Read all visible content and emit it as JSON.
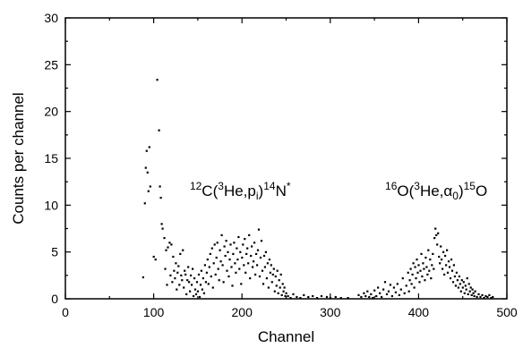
{
  "chart_data": {
    "type": "scatter",
    "xlabel": "Channel",
    "ylabel": "Counts per channel",
    "xlim": [
      0,
      500
    ],
    "ylim": [
      0,
      30
    ],
    "xticks": [
      0,
      100,
      200,
      300,
      400,
      500
    ],
    "yticks": [
      0,
      5,
      10,
      15,
      20,
      25,
      30
    ],
    "grid": false,
    "annotations": [
      {
        "label": "12C(3He,pi)14N*",
        "x": 198,
        "y": 11
      },
      {
        "label": "16O(3He,α0)15O",
        "x": 420,
        "y": 11
      }
    ],
    "series": [
      {
        "marker_color": "#000000",
        "points": [
          [
            88,
            2.3
          ],
          [
            90,
            10.2
          ],
          [
            91,
            14
          ],
          [
            92,
            15.8
          ],
          [
            93,
            13.5
          ],
          [
            94,
            11.5
          ],
          [
            95,
            16.2
          ],
          [
            96,
            12
          ],
          [
            100,
            4.5
          ],
          [
            102,
            4.2
          ],
          [
            104,
            23.4
          ],
          [
            106,
            18
          ],
          [
            107,
            12
          ],
          [
            108,
            10.8
          ],
          [
            109,
            8
          ],
          [
            110,
            7.5
          ],
          [
            112,
            6.5
          ],
          [
            113,
            3.2
          ],
          [
            114,
            5.2
          ],
          [
            115,
            1.5
          ],
          [
            116,
            5.5
          ],
          [
            118,
            6
          ],
          [
            119,
            2.5
          ],
          [
            120,
            5.8
          ],
          [
            121,
            1.8
          ],
          [
            122,
            4.5
          ],
          [
            123,
            3
          ],
          [
            124,
            2.2
          ],
          [
            125,
            3.8
          ],
          [
            126,
            1
          ],
          [
            127,
            2.8
          ],
          [
            128,
            3.5
          ],
          [
            129,
            1.5
          ],
          [
            130,
            4.8
          ],
          [
            131,
            2.5
          ],
          [
            132,
            2
          ],
          [
            133,
            5.2
          ],
          [
            134,
            1.2
          ],
          [
            135,
            3
          ],
          [
            136,
            2.6
          ],
          [
            137,
            0.5
          ],
          [
            138,
            2
          ],
          [
            139,
            3.4
          ],
          [
            140,
            1.8
          ],
          [
            141,
            0.8
          ],
          [
            142,
            2.5
          ],
          [
            143,
            1.5
          ],
          [
            144,
            3.2
          ],
          [
            145,
            0.3
          ],
          [
            146,
            2.2
          ],
          [
            147,
            1
          ],
          [
            148,
            0.5
          ],
          [
            149,
            1.8
          ],
          [
            150,
            0.8
          ],
          [
            151,
            2.6
          ],
          [
            152,
            0.2
          ],
          [
            153,
            1.5
          ],
          [
            154,
            3
          ],
          [
            155,
            1
          ],
          [
            156,
            2.2
          ],
          [
            157,
            0.6
          ],
          [
            158,
            3.6
          ],
          [
            159,
            1.8
          ],
          [
            160,
            2.8
          ],
          [
            161,
            4.2
          ],
          [
            162,
            1.6
          ],
          [
            163,
            3.4
          ],
          [
            164,
            4.8
          ],
          [
            165,
            2.4
          ],
          [
            166,
            5.4
          ],
          [
            167,
            1.2
          ],
          [
            168,
            3.8
          ],
          [
            169,
            5.8
          ],
          [
            170,
            2.6
          ],
          [
            171,
            4.4
          ],
          [
            172,
            6
          ],
          [
            173,
            3.2
          ],
          [
            174,
            2
          ],
          [
            175,
            5.2
          ],
          [
            176,
            4
          ],
          [
            177,
            6.8
          ],
          [
            178,
            3.6
          ],
          [
            179,
            1.8
          ],
          [
            180,
            5.6
          ],
          [
            181,
            4.6
          ],
          [
            182,
            6.2
          ],
          [
            183,
            3
          ],
          [
            184,
            5
          ],
          [
            185,
            2.4
          ],
          [
            186,
            4.2
          ],
          [
            187,
            5.8
          ],
          [
            188,
            3.4
          ],
          [
            189,
            1.4
          ],
          [
            190,
            4.8
          ],
          [
            191,
            6
          ],
          [
            192,
            3.8
          ],
          [
            193,
            2.8
          ],
          [
            194,
            5.4
          ],
          [
            195,
            4.2
          ],
          [
            196,
            6.6
          ],
          [
            197,
            3.2
          ],
          [
            198,
            5
          ],
          [
            199,
            1.6
          ],
          [
            200,
            4.4
          ],
          [
            201,
            5.8
          ],
          [
            202,
            3.6
          ],
          [
            203,
            6.4
          ],
          [
            204,
            2.8
          ],
          [
            205,
            4.8
          ],
          [
            206,
            5.4
          ],
          [
            207,
            3.8
          ],
          [
            208,
            6.8
          ],
          [
            209,
            2.2
          ],
          [
            210,
            4.6
          ],
          [
            211,
            5.6
          ],
          [
            212,
            3.4
          ],
          [
            213,
            4
          ],
          [
            214,
            6
          ],
          [
            215,
            2.6
          ],
          [
            216,
            4.8
          ],
          [
            217,
            3.6
          ],
          [
            218,
            5.2
          ],
          [
            219,
            7.4
          ],
          [
            220,
            2.4
          ],
          [
            221,
            4.4
          ],
          [
            222,
            6.2
          ],
          [
            223,
            3
          ],
          [
            224,
            1.6
          ],
          [
            225,
            4.6
          ],
          [
            226,
            3.4
          ],
          [
            227,
            5
          ],
          [
            228,
            2.2
          ],
          [
            229,
            3.8
          ],
          [
            230,
            1.2
          ],
          [
            231,
            4.2
          ],
          [
            232,
            2.8
          ],
          [
            233,
            3.6
          ],
          [
            234,
            1.8
          ],
          [
            235,
            2.6
          ],
          [
            236,
            3.2
          ],
          [
            237,
            0.8
          ],
          [
            238,
            2.4
          ],
          [
            239,
            1.4
          ],
          [
            240,
            3
          ],
          [
            241,
            0.6
          ],
          [
            242,
            2
          ],
          [
            243,
            1.2
          ],
          [
            244,
            2.6
          ],
          [
            245,
            0.4
          ],
          [
            246,
            1.6
          ],
          [
            247,
            0.8
          ],
          [
            248,
            1.2
          ],
          [
            249,
            0.3
          ],
          [
            250,
            0.6
          ],
          [
            252,
            0.3
          ],
          [
            255,
            0.1
          ],
          [
            258,
            0.5
          ],
          [
            262,
            0.2
          ],
          [
            266,
            0.1
          ],
          [
            270,
            0.4
          ],
          [
            275,
            0.2
          ],
          [
            280,
            0.3
          ],
          [
            285,
            0.1
          ],
          [
            290,
            0.3
          ],
          [
            296,
            0.2
          ],
          [
            300,
            0.1
          ],
          [
            306,
            0.2
          ],
          [
            312,
            0.1
          ],
          [
            320,
            0.1
          ],
          [
            332,
            0.4
          ],
          [
            335,
            0.2
          ],
          [
            338,
            0.6
          ],
          [
            340,
            0.3
          ],
          [
            342,
            0.8
          ],
          [
            344,
            0.2
          ],
          [
            346,
            0.5
          ],
          [
            348,
            0.1
          ],
          [
            350,
            0.9
          ],
          [
            352,
            0.3
          ],
          [
            354,
            1.2
          ],
          [
            356,
            0.6
          ],
          [
            358,
            0.2
          ],
          [
            360,
            1
          ],
          [
            362,
            1.8
          ],
          [
            364,
            0.5
          ],
          [
            366,
            0.8
          ],
          [
            368,
            1.5
          ],
          [
            370,
            0.3
          ],
          [
            372,
            1.2
          ],
          [
            374,
            0.7
          ],
          [
            376,
            1.6
          ],
          [
            378,
            0.4
          ],
          [
            380,
            1
          ],
          [
            382,
            2.2
          ],
          [
            384,
            0.6
          ],
          [
            386,
            1.4
          ],
          [
            388,
            2.8
          ],
          [
            389,
            0.8
          ],
          [
            390,
            2
          ],
          [
            391,
            3.2
          ],
          [
            392,
            1.6
          ],
          [
            393,
            2.6
          ],
          [
            394,
            3.8
          ],
          [
            395,
            1.2
          ],
          [
            396,
            3.4
          ],
          [
            397,
            2.2
          ],
          [
            398,
            4.2
          ],
          [
            399,
            2.8
          ],
          [
            400,
            3.6
          ],
          [
            401,
            1.8
          ],
          [
            402,
            3
          ],
          [
            403,
            4.8
          ],
          [
            404,
            2.4
          ],
          [
            405,
            3.8
          ],
          [
            406,
            3.2
          ],
          [
            407,
            2
          ],
          [
            408,
            4.4
          ],
          [
            409,
            3.4
          ],
          [
            410,
            2.6
          ],
          [
            411,
            5.2
          ],
          [
            412,
            3
          ],
          [
            413,
            4.2
          ],
          [
            414,
            2.2
          ],
          [
            415,
            3.6
          ],
          [
            416,
            4.8
          ],
          [
            417,
            3.2
          ],
          [
            418,
            6.5
          ],
          [
            419,
            7.5
          ],
          [
            420,
            6.8
          ],
          [
            421,
            5.8
          ],
          [
            422,
            7
          ],
          [
            423,
            4.5
          ],
          [
            424,
            3.8
          ],
          [
            425,
            5.6
          ],
          [
            426,
            4.2
          ],
          [
            427,
            3.2
          ],
          [
            428,
            5
          ],
          [
            429,
            2.6
          ],
          [
            430,
            4.6
          ],
          [
            431,
            3.6
          ],
          [
            432,
            5.2
          ],
          [
            433,
            2.8
          ],
          [
            434,
            4
          ],
          [
            435,
            3.4
          ],
          [
            436,
            2.2
          ],
          [
            437,
            4.2
          ],
          [
            438,
            3
          ],
          [
            439,
            1.8
          ],
          [
            440,
            3.6
          ],
          [
            441,
            2.4
          ],
          [
            442,
            1.4
          ],
          [
            443,
            2.8
          ],
          [
            444,
            2
          ],
          [
            445,
            1.2
          ],
          [
            446,
            2.4
          ],
          [
            447,
            1.6
          ],
          [
            448,
            0.8
          ],
          [
            449,
            2
          ],
          [
            450,
            1.2
          ],
          [
            451,
            1.8
          ],
          [
            452,
            0.6
          ],
          [
            453,
            1.4
          ],
          [
            454,
            1
          ],
          [
            455,
            2.2
          ],
          [
            456,
            0.5
          ],
          [
            457,
            1.6
          ],
          [
            458,
            0.8
          ],
          [
            459,
            1.2
          ],
          [
            460,
            0.4
          ],
          [
            461,
            1
          ],
          [
            462,
            0.6
          ],
          [
            463,
            0.3
          ],
          [
            464,
            0.8
          ],
          [
            466,
            0.2
          ],
          [
            468,
            0.5
          ],
          [
            470,
            0.2
          ],
          [
            472,
            0.4
          ],
          [
            474,
            0.1
          ],
          [
            476,
            0.3
          ],
          [
            478,
            0.2
          ],
          [
            480,
            0.4
          ],
          [
            482,
            0.1
          ],
          [
            484,
            0.2
          ]
        ]
      }
    ]
  }
}
